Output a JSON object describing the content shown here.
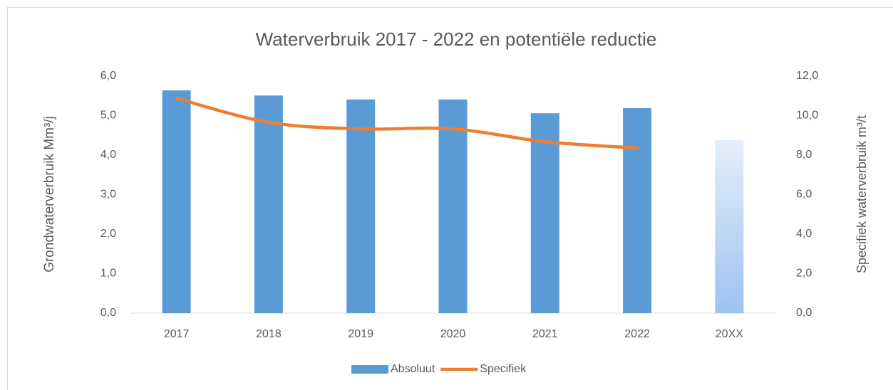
{
  "chart_data": {
    "type": "bar_line",
    "title": "Waterverbruik 2017 - 2022 en potentiële reductie",
    "y_label": "Grondwaterverbruik Mm³/j",
    "y2_label": "Specifiek waterverbruik m³/t",
    "categories": [
      "2017",
      "2018",
      "2019",
      "2020",
      "2021",
      "2022",
      "20XX"
    ],
    "series": [
      {
        "name": "Absoluut",
        "type": "bar",
        "color": "#5b9bd5",
        "bar_colors": [
          "#5b9bd5",
          "#5b9bd5",
          "#5b9bd5",
          "#5b9bd5",
          "#5b9bd5",
          "#5b9bd5",
          [
            "#e4eefa",
            "#9dc3f2"
          ]
        ],
        "values": [
          5.64,
          5.51,
          5.41,
          5.41,
          5.06,
          5.19,
          4.38
        ]
      },
      {
        "name": "Specifiek",
        "type": "line",
        "axis": "y2",
        "color": "#ed7d31",
        "values": [
          10.88,
          9.66,
          9.33,
          9.33,
          8.68,
          8.36,
          null
        ]
      }
    ],
    "ylim": [
      0,
      6
    ],
    "yticks": [
      {
        "value": 0,
        "label": "0,0"
      },
      {
        "value": 1,
        "label": "1,0"
      },
      {
        "value": 2,
        "label": "2,0"
      },
      {
        "value": 3,
        "label": "3,0"
      },
      {
        "value": 4,
        "label": "4,0"
      },
      {
        "value": 5,
        "label": "5,0"
      },
      {
        "value": 6,
        "label": "6,0"
      }
    ],
    "y2lim": [
      0,
      12
    ],
    "y2ticks": [
      {
        "value": 0,
        "label": "0,0"
      },
      {
        "value": 2,
        "label": "2,0"
      },
      {
        "value": 4,
        "label": "4,0"
      },
      {
        "value": 6,
        "label": "6,0"
      },
      {
        "value": 8,
        "label": "8,0"
      },
      {
        "value": 10,
        "label": "10,0"
      },
      {
        "value": 12,
        "label": "12,0"
      }
    ],
    "grid": false,
    "legend": "bottom"
  }
}
